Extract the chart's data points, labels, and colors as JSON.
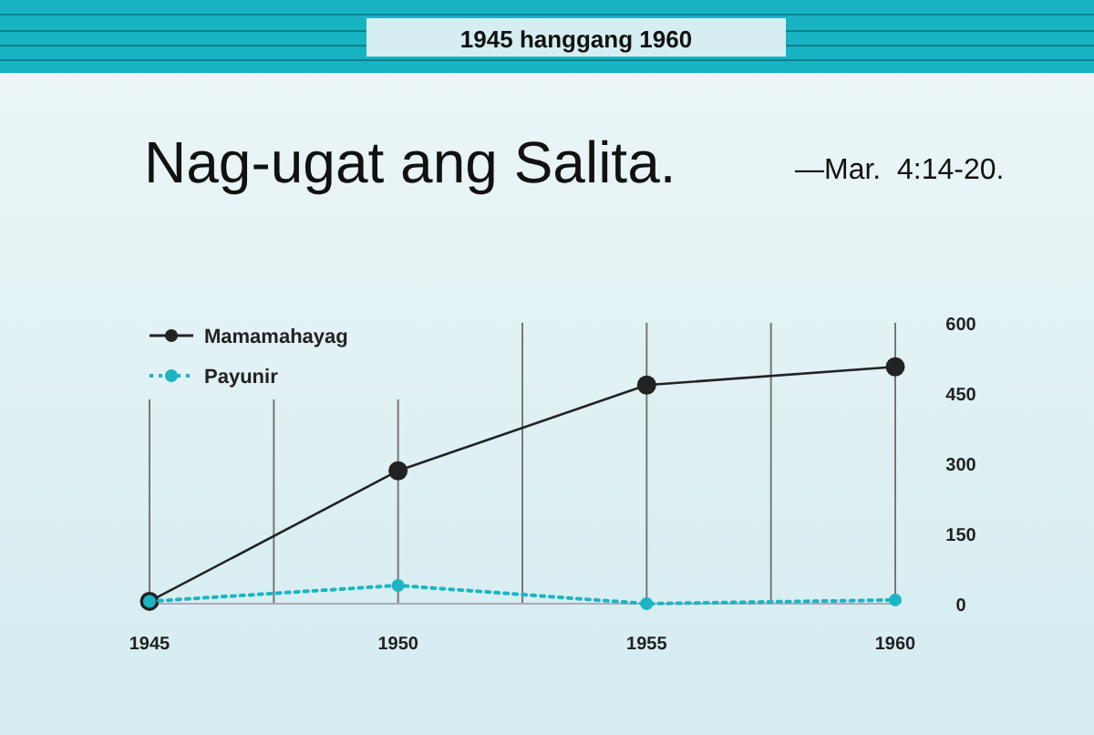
{
  "chart_data": {
    "type": "line",
    "title": "Nag-ugat ang Salita.",
    "subtitle": "1945 hanggang 1960",
    "annotations": [
      "—Mar.  4:14-20."
    ],
    "x": [
      1945,
      1950,
      1955,
      1960
    ],
    "series": [
      {
        "name": "Mamamahayag",
        "color": "#222222",
        "values": [
          5,
          284,
          467,
          506
        ],
        "line_style": "solid",
        "marker": "circle"
      },
      {
        "name": "Payunir",
        "color": "#1bb5c4",
        "values": [
          5,
          39,
          0,
          8
        ],
        "line_style": "dotted",
        "marker": "circle"
      }
    ],
    "xlim": [
      1945,
      1960
    ],
    "xticks": [
      1945,
      {
        "value": 1947.5,
        "label": null
      },
      1950,
      {
        "value": 1952.5,
        "label": null
      },
      1955,
      {
        "value": 1957.5,
        "label": null
      },
      1960
    ],
    "ylim": [
      0,
      600
    ],
    "yticks": [
      0,
      150,
      300,
      450,
      600
    ],
    "grid": "x",
    "legend": "top left"
  }
}
